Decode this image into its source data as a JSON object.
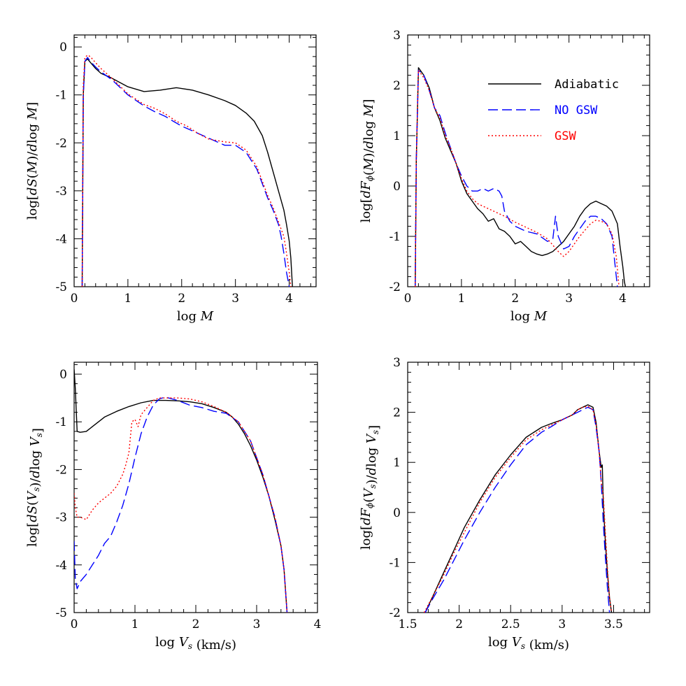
{
  "colors": {
    "adiabatic": "#000000",
    "no_gsw": "#0000ff",
    "gsw": "#ff0000"
  },
  "chart_data": [
    {
      "type": "line",
      "xlabel": "log M",
      "ylabel": "log[dS(M)/dlog M]",
      "xlim": [
        0,
        4.5
      ],
      "ylim": [
        -5,
        0.25
      ],
      "xticks": [
        0,
        1,
        2,
        3,
        4
      ],
      "yticks": [
        0,
        -1,
        -2,
        -3,
        -4,
        -5
      ],
      "legend": false,
      "series": [
        {
          "key": "adiabatic",
          "style": "solid",
          "x": [
            0.15,
            0.17,
            0.2,
            0.25,
            0.3,
            0.4,
            0.5,
            0.7,
            1.0,
            1.3,
            1.6,
            1.9,
            2.2,
            2.5,
            2.8,
            3.0,
            3.2,
            3.35,
            3.5,
            3.6,
            3.7,
            3.8,
            3.9,
            3.95,
            4.0,
            4.03,
            4.06
          ],
          "y": [
            -5,
            -1.0,
            -0.3,
            -0.25,
            -0.32,
            -0.45,
            -0.55,
            -0.65,
            -0.83,
            -0.93,
            -0.9,
            -0.85,
            -0.9,
            -1.0,
            -1.12,
            -1.22,
            -1.38,
            -1.55,
            -1.85,
            -2.2,
            -2.6,
            -3.0,
            -3.4,
            -3.7,
            -4.05,
            -4.4,
            -5
          ]
        },
        {
          "key": "no_gsw",
          "style": "dashed",
          "x": [
            0.15,
            0.17,
            0.2,
            0.25,
            0.3,
            0.4,
            0.5,
            0.7,
            1.0,
            1.3,
            1.5,
            1.7,
            1.8,
            2.0,
            2.2,
            2.4,
            2.6,
            2.8,
            3.0,
            3.2,
            3.4,
            3.5,
            3.6,
            3.7,
            3.8,
            3.85,
            3.9,
            3.95,
            4.0
          ],
          "y": [
            -5,
            -1.0,
            -0.3,
            -0.22,
            -0.3,
            -0.42,
            -0.52,
            -0.68,
            -1.0,
            -1.23,
            -1.35,
            -1.45,
            -1.52,
            -1.65,
            -1.75,
            -1.85,
            -1.95,
            -2.05,
            -2.05,
            -2.2,
            -2.55,
            -2.85,
            -3.15,
            -3.4,
            -3.7,
            -3.95,
            -4.3,
            -4.7,
            -5
          ]
        },
        {
          "key": "gsw",
          "style": "dotted",
          "x": [
            0.15,
            0.17,
            0.2,
            0.25,
            0.3,
            0.4,
            0.5,
            0.7,
            1.0,
            1.3,
            1.5,
            1.7,
            1.9,
            2.1,
            2.3,
            2.5,
            2.8,
            3.0,
            3.2,
            3.4,
            3.5,
            3.6,
            3.7,
            3.8,
            3.9,
            3.95,
            4.0,
            4.03
          ],
          "y": [
            -5,
            -0.8,
            -0.22,
            -0.17,
            -0.2,
            -0.33,
            -0.45,
            -0.65,
            -0.98,
            -1.2,
            -1.28,
            -1.4,
            -1.55,
            -1.65,
            -1.8,
            -1.92,
            -1.98,
            -2.0,
            -2.15,
            -2.5,
            -2.8,
            -3.1,
            -3.35,
            -3.65,
            -3.95,
            -4.3,
            -4.7,
            -5
          ]
        }
      ]
    },
    {
      "type": "line",
      "xlabel": "log M",
      "ylabel": "log[dFϕ(M)/dlog M]",
      "xlim": [
        0,
        4.5
      ],
      "ylim": [
        -2,
        3
      ],
      "xticks": [
        0,
        1,
        2,
        3,
        4
      ],
      "yticks": [
        3,
        2,
        1,
        0,
        -1,
        -2
      ],
      "legend": true,
      "legend_entries": [
        {
          "key": "adiabatic",
          "label": "Adiabatic",
          "style": "solid"
        },
        {
          "key": "no_gsw",
          "label": "NO GSW",
          "style": "dashed"
        },
        {
          "key": "gsw",
          "label": "GSW",
          "style": "dotted"
        }
      ],
      "series": [
        {
          "key": "adiabatic",
          "style": "solid",
          "x": [
            0.14,
            0.16,
            0.2,
            0.3,
            0.4,
            0.5,
            0.6,
            0.7,
            0.8,
            0.9,
            1.0,
            1.1,
            1.2,
            1.3,
            1.4,
            1.5,
            1.6,
            1.7,
            1.8,
            1.9,
            2.0,
            2.1,
            2.2,
            2.3,
            2.4,
            2.5,
            2.6,
            2.7,
            2.8,
            2.9,
            3.0,
            3.1,
            3.2,
            3.3,
            3.4,
            3.5,
            3.6,
            3.7,
            3.8,
            3.9,
            3.95,
            4.0,
            4.03,
            4.05
          ],
          "y": [
            -2,
            0.5,
            2.35,
            2.2,
            1.95,
            1.55,
            1.3,
            0.95,
            0.7,
            0.45,
            0.1,
            -0.15,
            -0.3,
            -0.45,
            -0.55,
            -0.7,
            -0.65,
            -0.85,
            -0.9,
            -1.0,
            -1.15,
            -1.1,
            -1.2,
            -1.3,
            -1.35,
            -1.38,
            -1.35,
            -1.3,
            -1.2,
            -1.1,
            -0.95,
            -0.8,
            -0.6,
            -0.45,
            -0.35,
            -0.3,
            -0.35,
            -0.4,
            -0.5,
            -0.75,
            -1.2,
            -1.6,
            -1.9,
            -2
          ]
        },
        {
          "key": "no_gsw",
          "style": "dashed",
          "x": [
            0.14,
            0.16,
            0.2,
            0.3,
            0.4,
            0.5,
            0.6,
            0.7,
            0.8,
            0.9,
            1.0,
            1.1,
            1.2,
            1.3,
            1.4,
            1.5,
            1.6,
            1.7,
            1.75,
            1.8,
            1.9,
            2.0,
            2.2,
            2.4,
            2.6,
            2.7,
            2.75,
            2.8,
            2.9,
            3.0,
            3.1,
            3.2,
            3.3,
            3.4,
            3.5,
            3.6,
            3.7,
            3.8,
            3.85,
            3.9
          ],
          "y": [
            -2,
            0.5,
            2.3,
            2.2,
            1.9,
            1.55,
            1.4,
            1.05,
            0.75,
            0.45,
            0.2,
            0.0,
            -0.1,
            -0.1,
            -0.05,
            -0.1,
            -0.05,
            -0.1,
            -0.2,
            -0.5,
            -0.7,
            -0.8,
            -0.9,
            -0.95,
            -1.1,
            -1.05,
            -0.6,
            -1.0,
            -1.25,
            -1.2,
            -1.0,
            -0.85,
            -0.7,
            -0.6,
            -0.6,
            -0.65,
            -0.75,
            -1.0,
            -1.5,
            -2
          ]
        },
        {
          "key": "gsw",
          "style": "dotted",
          "x": [
            0.14,
            0.16,
            0.2,
            0.3,
            0.4,
            0.5,
            0.6,
            0.7,
            0.8,
            0.9,
            1.0,
            1.1,
            1.2,
            1.3,
            1.4,
            1.6,
            1.8,
            2.0,
            2.2,
            2.4,
            2.6,
            2.8,
            2.9,
            3.0,
            3.2,
            3.4,
            3.5,
            3.6,
            3.7,
            3.8,
            3.88,
            3.93
          ],
          "y": [
            -2,
            0.5,
            2.3,
            2.15,
            1.9,
            1.55,
            1.35,
            1.0,
            0.75,
            0.45,
            0.15,
            -0.1,
            -0.25,
            -0.35,
            -0.4,
            -0.5,
            -0.6,
            -0.72,
            -0.82,
            -0.92,
            -1.05,
            -1.3,
            -1.4,
            -1.3,
            -1.0,
            -0.75,
            -0.68,
            -0.7,
            -0.75,
            -0.95,
            -1.4,
            -2
          ]
        }
      ]
    },
    {
      "type": "line",
      "xlabel": "log Vs (km/s)",
      "ylabel": "log[dS(Vs)/dlog Vs]",
      "xlim": [
        0,
        4
      ],
      "ylim": [
        -5,
        0.25
      ],
      "xticks": [
        0,
        1,
        2,
        3,
        4
      ],
      "yticks": [
        0,
        -1,
        -2,
        -3,
        -4,
        -5
      ],
      "legend": false,
      "series": [
        {
          "key": "adiabatic",
          "style": "solid",
          "x": [
            0.0,
            0.02,
            0.05,
            0.1,
            0.2,
            0.3,
            0.5,
            0.7,
            0.9,
            1.1,
            1.3,
            1.5,
            1.7,
            1.9,
            2.1,
            2.3,
            2.5,
            2.6,
            2.7,
            2.8,
            2.9,
            3.0,
            3.1,
            3.2,
            3.3,
            3.4,
            3.45,
            3.5
          ],
          "y": [
            0.1,
            -0.3,
            -1.2,
            -1.22,
            -1.2,
            -1.1,
            -0.9,
            -0.78,
            -0.68,
            -0.6,
            -0.55,
            -0.55,
            -0.56,
            -0.58,
            -0.62,
            -0.7,
            -0.8,
            -0.9,
            -1.05,
            -1.25,
            -1.5,
            -1.8,
            -2.15,
            -2.55,
            -3.05,
            -3.6,
            -4.1,
            -5
          ]
        },
        {
          "key": "no_gsw",
          "style": "dashed",
          "x": [
            0.0,
            0.02,
            0.05,
            0.1,
            0.2,
            0.3,
            0.4,
            0.5,
            0.6,
            0.7,
            0.8,
            0.9,
            1.0,
            1.1,
            1.2,
            1.3,
            1.4,
            1.5,
            1.7,
            1.9,
            2.1,
            2.3,
            2.5,
            2.7,
            2.9,
            3.1,
            3.3,
            3.4,
            3.45,
            3.5
          ],
          "y": [
            -3.5,
            -4.3,
            -4.5,
            -4.35,
            -4.2,
            -4.0,
            -3.8,
            -3.55,
            -3.4,
            -3.1,
            -2.75,
            -2.3,
            -1.75,
            -1.25,
            -0.9,
            -0.65,
            -0.52,
            -0.48,
            -0.55,
            -0.65,
            -0.7,
            -0.78,
            -0.82,
            -1.0,
            -1.4,
            -2.1,
            -3.0,
            -3.6,
            -4.1,
            -5
          ]
        },
        {
          "key": "gsw",
          "style": "dotted",
          "x": [
            0.0,
            0.02,
            0.05,
            0.1,
            0.2,
            0.3,
            0.4,
            0.5,
            0.6,
            0.7,
            0.8,
            0.85,
            0.9,
            0.95,
            1.0,
            1.05,
            1.1,
            1.2,
            1.3,
            1.4,
            1.5,
            1.7,
            1.9,
            2.1,
            2.3,
            2.5,
            2.7,
            2.9,
            3.1,
            3.3,
            3.4,
            3.45,
            3.5
          ],
          "y": [
            -2.5,
            -2.8,
            -3.0,
            -3.0,
            -3.05,
            -2.85,
            -2.7,
            -2.6,
            -2.5,
            -2.35,
            -2.1,
            -1.9,
            -1.65,
            -1.0,
            -0.95,
            -1.1,
            -0.85,
            -0.7,
            -0.55,
            -0.5,
            -0.5,
            -0.5,
            -0.52,
            -0.58,
            -0.68,
            -0.8,
            -1.0,
            -1.4,
            -2.1,
            -3.0,
            -3.6,
            -4.1,
            -5
          ]
        }
      ]
    },
    {
      "type": "line",
      "xlabel": "log Vs (km/s)",
      "ylabel": "log[dFϕ(Vs)/dlog Vs]",
      "xlim": [
        1.5,
        3.85
      ],
      "ylim": [
        -2,
        3
      ],
      "xticks": [
        1.5,
        2,
        2.5,
        3,
        3.5
      ],
      "yticks": [
        3,
        2,
        1,
        0,
        -1,
        -2
      ],
      "legend": false,
      "series": [
        {
          "key": "adiabatic",
          "style": "solid",
          "x": [
            1.67,
            1.75,
            1.85,
            1.95,
            2.05,
            2.2,
            2.35,
            2.5,
            2.65,
            2.8,
            2.9,
            3.0,
            3.1,
            3.15,
            3.2,
            3.25,
            3.3,
            3.33,
            3.36,
            3.38,
            3.39,
            3.4,
            3.42,
            3.44,
            3.46,
            3.48
          ],
          "y": [
            -2,
            -1.65,
            -1.2,
            -0.75,
            -0.3,
            0.25,
            0.75,
            1.15,
            1.5,
            1.7,
            1.78,
            1.85,
            1.95,
            2.05,
            2.1,
            2.15,
            2.1,
            1.8,
            1.2,
            0.9,
            0.95,
            0.2,
            -0.6,
            -1.2,
            -1.7,
            -2
          ]
        },
        {
          "key": "no_gsw",
          "style": "dashed",
          "x": [
            1.67,
            1.75,
            1.85,
            1.95,
            2.05,
            2.2,
            2.35,
            2.5,
            2.65,
            2.8,
            2.9,
            3.0,
            3.1,
            3.15,
            3.2,
            3.25,
            3.3,
            3.33,
            3.36,
            3.38,
            3.4,
            3.42,
            3.44,
            3.46
          ],
          "y": [
            -2,
            -1.7,
            -1.35,
            -0.95,
            -0.55,
            0.0,
            0.5,
            0.95,
            1.35,
            1.6,
            1.72,
            1.85,
            1.95,
            2.0,
            2.05,
            2.1,
            2.05,
            1.7,
            1.2,
            0.6,
            -0.2,
            -0.9,
            -1.5,
            -2
          ]
        },
        {
          "key": "gsw",
          "style": "dotted",
          "x": [
            1.66,
            1.75,
            1.85,
            1.95,
            2.05,
            2.2,
            2.35,
            2.5,
            2.65,
            2.8,
            2.9,
            3.0,
            3.1,
            3.15,
            3.2,
            3.25,
            3.3,
            3.33,
            3.36,
            3.38,
            3.4,
            3.42,
            3.44,
            3.46,
            3.48
          ],
          "y": [
            -2,
            -1.65,
            -1.25,
            -0.8,
            -0.4,
            0.2,
            0.7,
            1.1,
            1.45,
            1.65,
            1.75,
            1.85,
            1.95,
            2.05,
            2.1,
            2.12,
            2.05,
            1.75,
            1.2,
            0.6,
            0.35,
            -0.4,
            -1.1,
            -1.7,
            -2
          ]
        }
      ]
    }
  ]
}
